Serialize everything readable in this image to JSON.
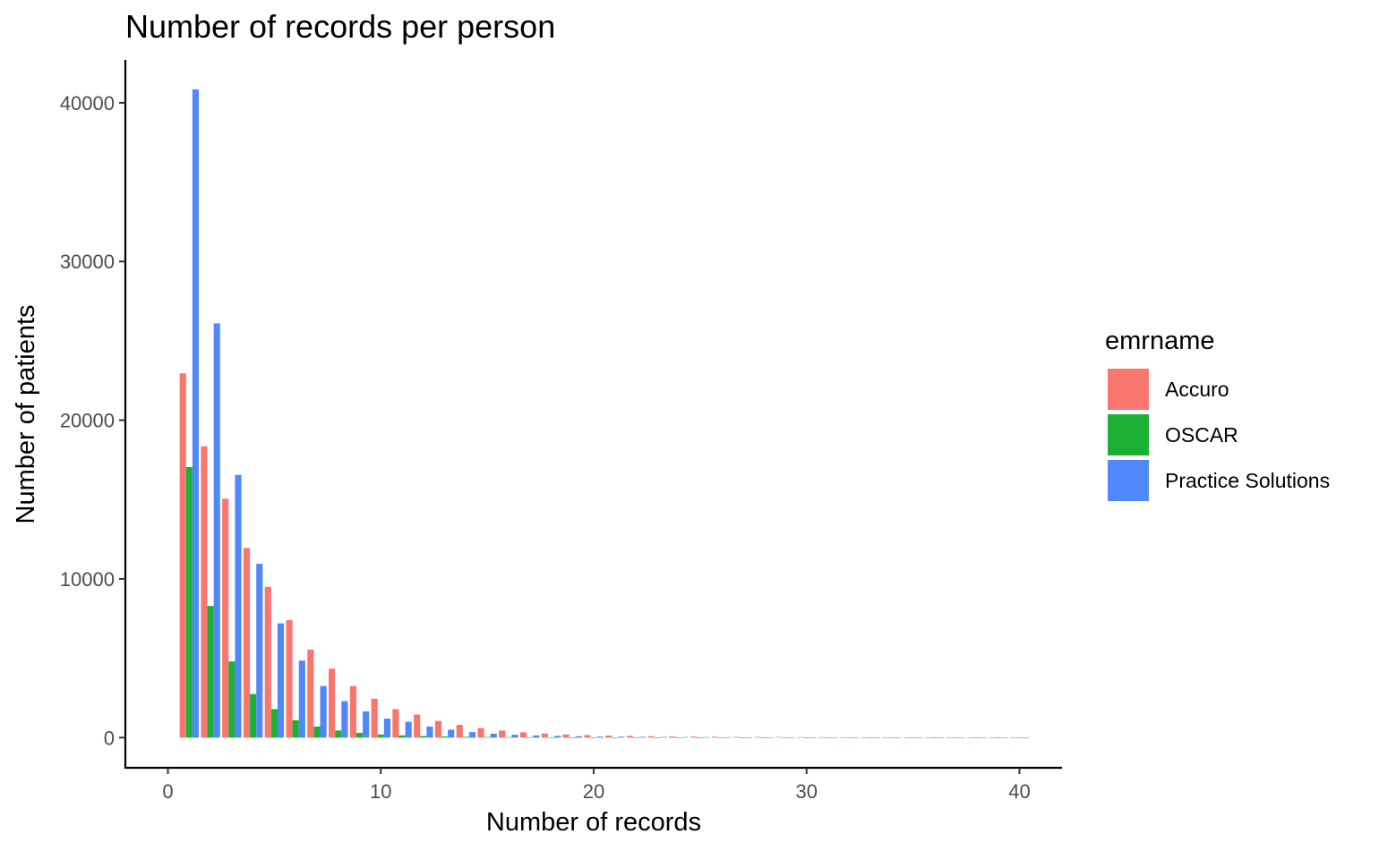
{
  "chart_data": {
    "type": "bar",
    "title": "Number of records per person",
    "xlabel": "Number of records",
    "ylabel": "Number of patients",
    "xlim": [
      -2,
      42
    ],
    "ylim": [
      -1900,
      42700
    ],
    "x_ticks": [
      0,
      10,
      20,
      30,
      40
    ],
    "x_tick_labels": [
      "0",
      "10",
      "20",
      "30",
      "40"
    ],
    "y_ticks": [
      0,
      10000,
      20000,
      30000,
      40000
    ],
    "y_tick_labels": [
      "0",
      "10000",
      "20000",
      "30000",
      "40000"
    ],
    "grid": false,
    "legend": {
      "title": "emrname",
      "position": "right"
    },
    "x": [
      1,
      2,
      3,
      4,
      5,
      6,
      7,
      8,
      9,
      10,
      11,
      12,
      13,
      14,
      15,
      16,
      17,
      18,
      19,
      20,
      21,
      22,
      23,
      24,
      25,
      26,
      27,
      28,
      29,
      30,
      31,
      32,
      33,
      34,
      35,
      36,
      37,
      38,
      39,
      40
    ],
    "series": [
      {
        "name": "Accuro",
        "color": "#F8766D",
        "values": [
          22950,
          18350,
          15050,
          11950,
          9500,
          7400,
          5550,
          4350,
          3250,
          2450,
          1800,
          1450,
          1050,
          800,
          600,
          450,
          330,
          260,
          200,
          160,
          130,
          110,
          90,
          75,
          65,
          55,
          45,
          40,
          35,
          30,
          26,
          23,
          20,
          17,
          15,
          13,
          11,
          10,
          9,
          8
        ]
      },
      {
        "name": "OSCAR",
        "color": "#1CB135",
        "values": [
          17050,
          8300,
          4800,
          2750,
          1800,
          1100,
          700,
          450,
          300,
          200,
          140,
          100,
          70,
          50,
          40,
          30,
          25,
          20,
          15,
          12,
          10,
          8,
          7,
          6,
          5,
          4,
          4,
          3,
          3,
          2,
          2,
          2,
          2,
          1,
          1,
          1,
          1,
          1,
          1,
          1
        ]
      },
      {
        "name": "Practice Solutions",
        "color": "#5087FD",
        "values": [
          40850,
          26100,
          16550,
          10950,
          7200,
          4850,
          3250,
          2300,
          1650,
          1200,
          1000,
          700,
          500,
          350,
          250,
          180,
          140,
          110,
          90,
          70,
          60,
          50,
          40,
          35,
          30,
          25,
          22,
          20,
          18,
          16,
          14,
          12,
          10,
          9,
          8,
          7,
          6,
          5,
          5,
          4
        ]
      }
    ]
  }
}
